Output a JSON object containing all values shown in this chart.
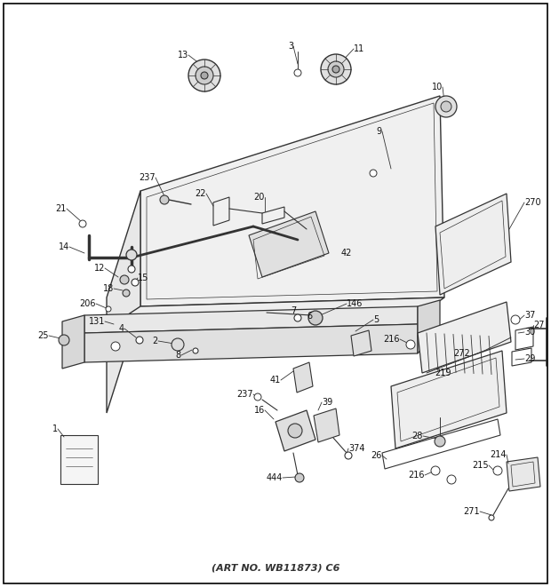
{
  "bg_color": "#ffffff",
  "border_color": "#000000",
  "fig_width": 6.2,
  "fig_height": 6.61,
  "art_no": "(ART NO. WB11873) C6",
  "line_color": "#333333",
  "label_color": "#111111",
  "label_fs": 7.0
}
